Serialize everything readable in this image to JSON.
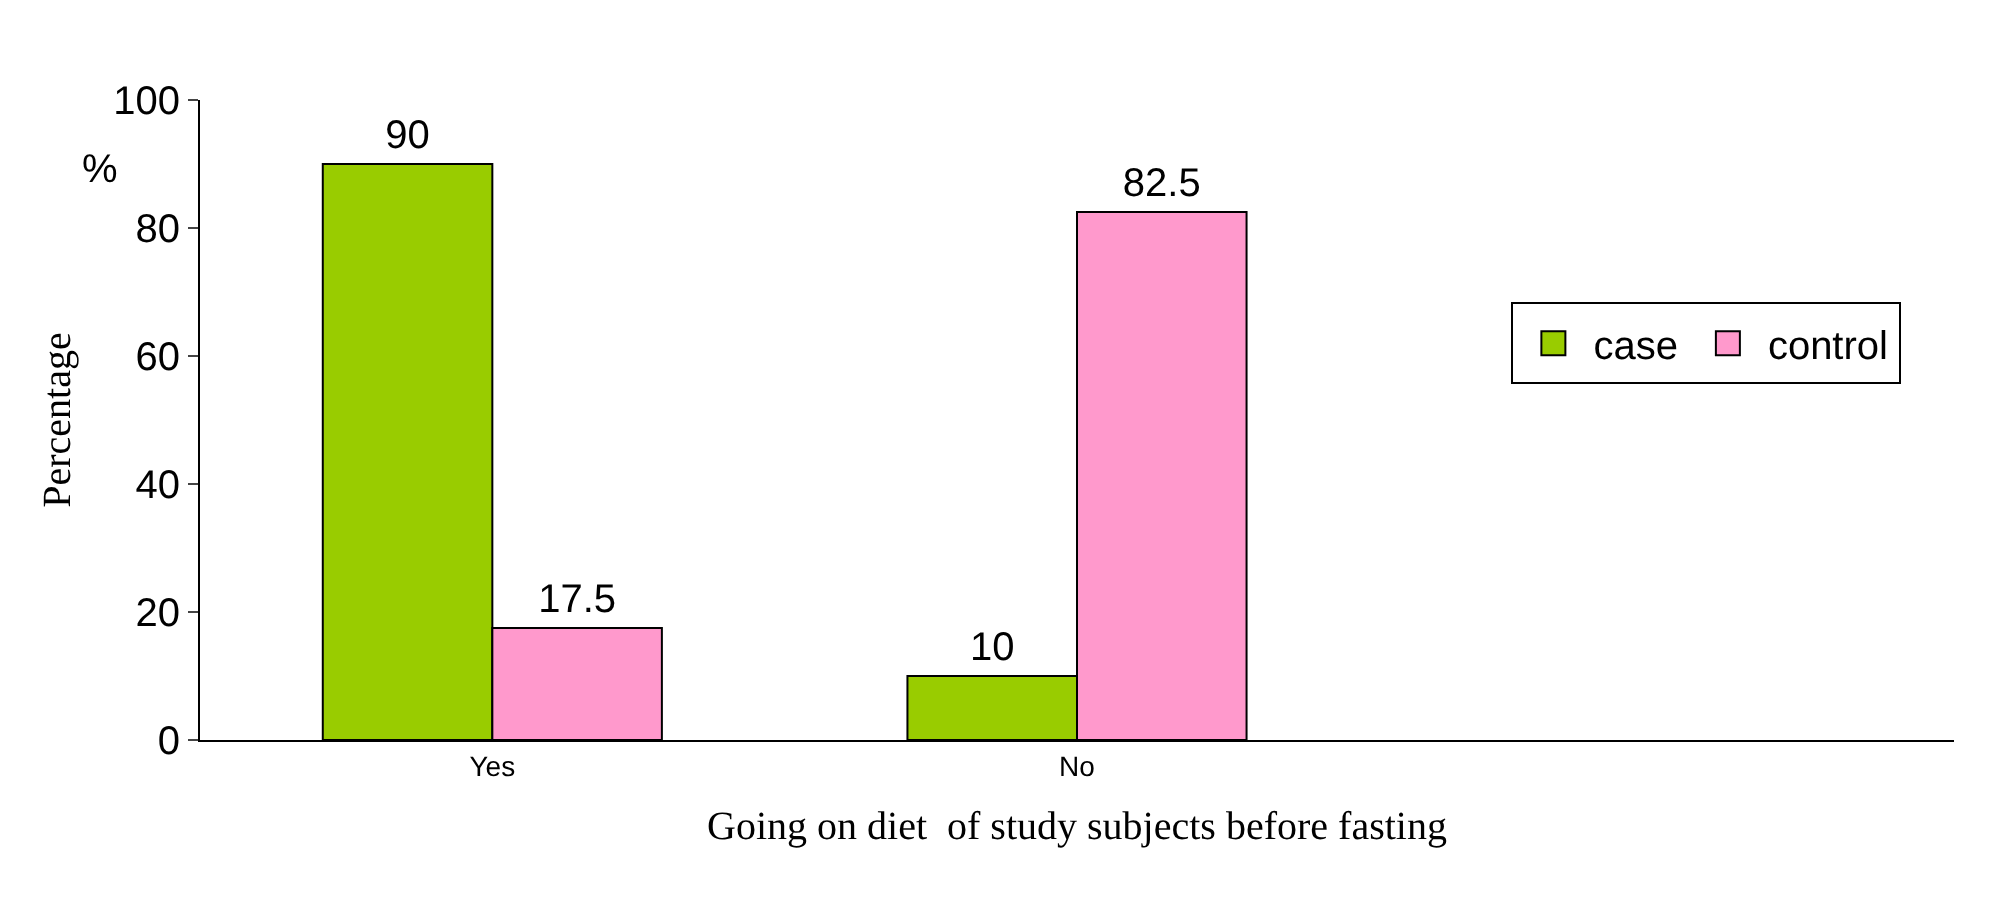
{
  "chart_data": {
    "type": "bar",
    "xlabel": "Going on diet  of study subjects before fasting",
    "ylabel": "Percentage",
    "annotations": [
      "%"
    ],
    "categories": [
      "Yes",
      "No",
      null
    ],
    "series": [
      {
        "name": "case",
        "color": "#99cc00",
        "values": [
          90,
          10,
          null
        ]
      },
      {
        "name": "control",
        "color": "#ff99cc",
        "values": [
          17.5,
          82.5,
          null
        ]
      }
    ],
    "ylim": [
      0,
      100
    ],
    "yticks": [
      0,
      20,
      40,
      60,
      80,
      100
    ],
    "legend": "right",
    "data_labels": true
  }
}
